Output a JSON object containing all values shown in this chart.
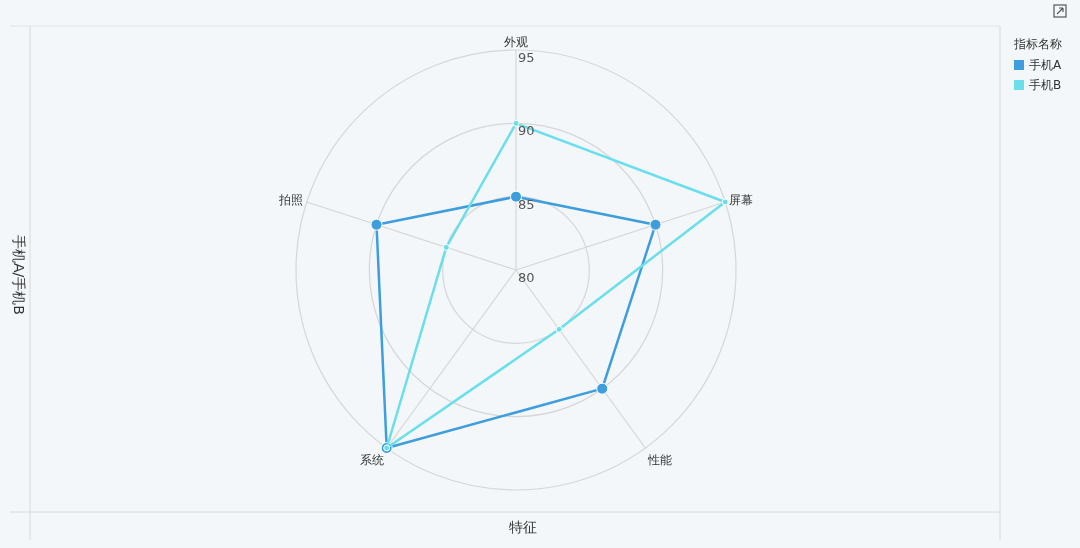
{
  "chart_data": {
    "type": "radar",
    "xlabel": "特征",
    "ylabel": "手机A/手机B",
    "legend_title": "指标名称",
    "legend": "top right",
    "marker": "circle",
    "grid": true,
    "categories": [
      "外观",
      "屏幕",
      "性能",
      "系统",
      "拍照"
    ],
    "ylim": [
      80,
      95
    ],
    "yticks": [
      80,
      85,
      90,
      95
    ],
    "series": [
      {
        "name": "手机A",
        "color": "#3d9ddd",
        "values": [
          85,
          90,
          90,
          95,
          90
        ]
      },
      {
        "name": "手机B",
        "color": "#6adfeb",
        "values": [
          90,
          95,
          85,
          95,
          85
        ]
      }
    ]
  }
}
